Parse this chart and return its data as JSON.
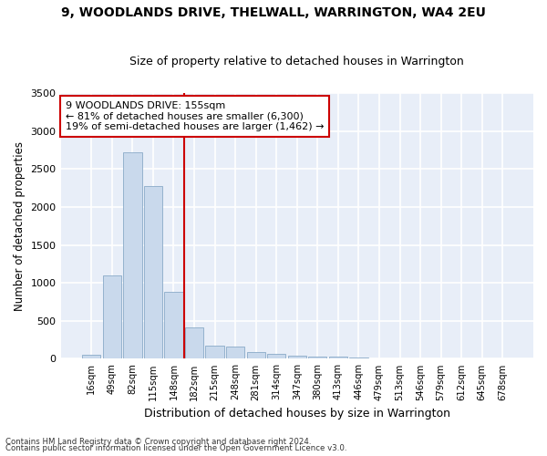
{
  "title": "9, WOODLANDS DRIVE, THELWALL, WARRINGTON, WA4 2EU",
  "subtitle": "Size of property relative to detached houses in Warrington",
  "xlabel": "Distribution of detached houses by size in Warrington",
  "ylabel": "Number of detached properties",
  "bar_color": "#c9d9ec",
  "bar_edge_color": "#8aaac8",
  "background_color": "#e8eef8",
  "grid_color": "#ffffff",
  "fig_bg_color": "#ffffff",
  "categories": [
    "16sqm",
    "49sqm",
    "82sqm",
    "115sqm",
    "148sqm",
    "182sqm",
    "215sqm",
    "248sqm",
    "281sqm",
    "314sqm",
    "347sqm",
    "380sqm",
    "413sqm",
    "446sqm",
    "479sqm",
    "513sqm",
    "546sqm",
    "579sqm",
    "612sqm",
    "645sqm",
    "678sqm"
  ],
  "values": [
    55,
    1100,
    2720,
    2280,
    880,
    415,
    170,
    160,
    90,
    60,
    45,
    35,
    30,
    15,
    8,
    5,
    3,
    2,
    1,
    1,
    1
  ],
  "ylim": [
    0,
    3500
  ],
  "yticks": [
    0,
    500,
    1000,
    1500,
    2000,
    2500,
    3000,
    3500
  ],
  "vline_bar_index": 4,
  "vline_color": "#cc0000",
  "annotation_line1": "9 WOODLANDS DRIVE: 155sqm",
  "annotation_line2": "← 81% of detached houses are smaller (6,300)",
  "annotation_line3": "19% of semi-detached houses are larger (1,462) →",
  "annotation_box_facecolor": "#ffffff",
  "annotation_box_edgecolor": "#cc0000",
  "footer1": "Contains HM Land Registry data © Crown copyright and database right 2024.",
  "footer2": "Contains public sector information licensed under the Open Government Licence v3.0."
}
